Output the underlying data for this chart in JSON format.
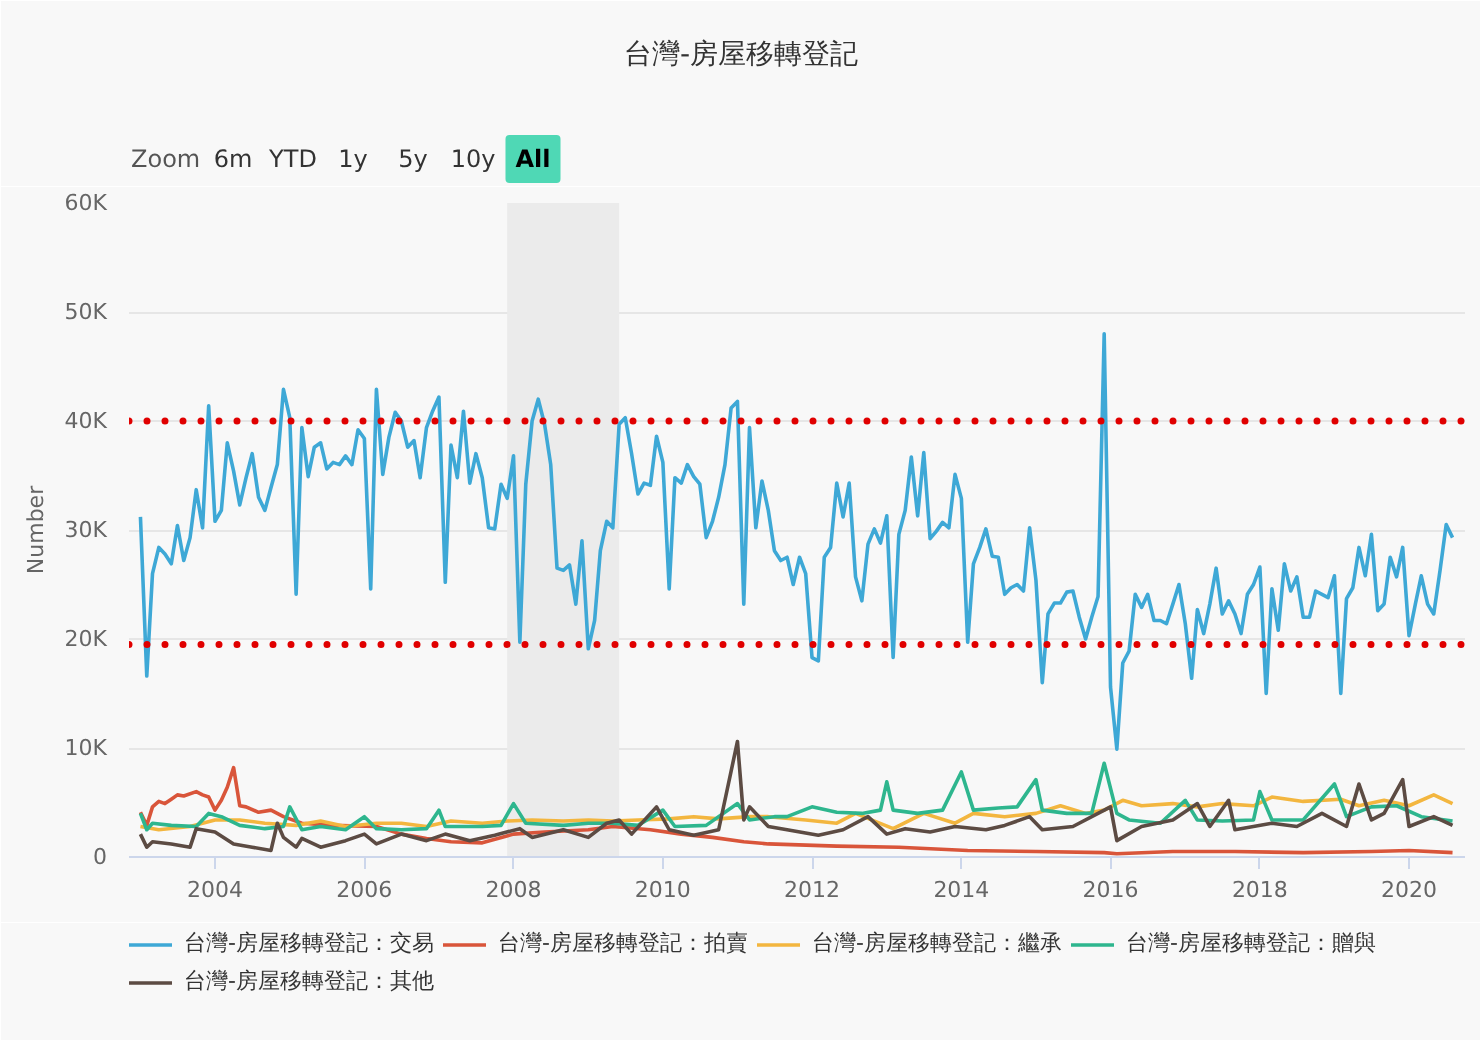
{
  "chart_data": {
    "type": "line",
    "title": "台灣-房屋移轉登記",
    "ylabel": "Number",
    "annotations": [
      "Zoom",
      "6m",
      "YTD",
      "1y",
      "5y",
      "10y",
      "All"
    ],
    "x": [
      "2003-01",
      "2003-02",
      "2003-03",
      "2003-04",
      "2003-05",
      "2003-06",
      "2003-07",
      "2003-08",
      "2003-09",
      "2003-10",
      "2003-11",
      "2003-12",
      "2004-01",
      "2004-02",
      "2004-03",
      "2004-04",
      "2004-05",
      "2004-06",
      "2004-07",
      "2004-08",
      "2004-09",
      "2004-10",
      "2004-11",
      "2004-12",
      "2005-01",
      "2005-02",
      "2005-03",
      "2005-04",
      "2005-05",
      "2005-06",
      "2005-07",
      "2005-08",
      "2005-09",
      "2005-10",
      "2005-11",
      "2005-12",
      "2006-01",
      "2006-02",
      "2006-03",
      "2006-04",
      "2006-05",
      "2006-06",
      "2006-07",
      "2006-08",
      "2006-09",
      "2006-10",
      "2006-11",
      "2006-12",
      "2007-01",
      "2007-02",
      "2007-03",
      "2007-04",
      "2007-05",
      "2007-06",
      "2007-07",
      "2007-08",
      "2007-09",
      "2007-10",
      "2007-11",
      "2007-12",
      "2008-01",
      "2008-02",
      "2008-03",
      "2008-04",
      "2008-05",
      "2008-06",
      "2008-07",
      "2008-08",
      "2008-09",
      "2008-10",
      "2008-11",
      "2008-12",
      "2009-01",
      "2009-02",
      "2009-03",
      "2009-04",
      "2009-05",
      "2009-06",
      "2009-07",
      "2009-08",
      "2009-09",
      "2009-10",
      "2009-11",
      "2009-12",
      "2010-01",
      "2010-02",
      "2010-03",
      "2010-04",
      "2010-05",
      "2010-06",
      "2010-07",
      "2010-08",
      "2010-09",
      "2010-10",
      "2010-11",
      "2010-12",
      "2011-01",
      "2011-02",
      "2011-03",
      "2011-04",
      "2011-05",
      "2011-06",
      "2011-07",
      "2011-08",
      "2011-09",
      "2011-10",
      "2011-11",
      "2011-12",
      "2012-01",
      "2012-02",
      "2012-03",
      "2012-04",
      "2012-05",
      "2012-06",
      "2012-07",
      "2012-08",
      "2012-09",
      "2012-10",
      "2012-11",
      "2012-12",
      "2013-01",
      "2013-02",
      "2013-03",
      "2013-04",
      "2013-05",
      "2013-06",
      "2013-07",
      "2013-08",
      "2013-09",
      "2013-10",
      "2013-11",
      "2013-12",
      "2014-01",
      "2014-02",
      "2014-03",
      "2014-04",
      "2014-05",
      "2014-06",
      "2014-07",
      "2014-08",
      "2014-09",
      "2014-10",
      "2014-11",
      "2014-12",
      "2015-01",
      "2015-02",
      "2015-03",
      "2015-04",
      "2015-05",
      "2015-06",
      "2015-07",
      "2015-08",
      "2015-09",
      "2015-10",
      "2015-11",
      "2015-12",
      "2016-01",
      "2016-02",
      "2016-03",
      "2016-04",
      "2016-05",
      "2016-06",
      "2016-07",
      "2016-08",
      "2016-09",
      "2016-10",
      "2016-11",
      "2016-12",
      "2017-01",
      "2017-02",
      "2017-03",
      "2017-04",
      "2017-05",
      "2017-06",
      "2017-07",
      "2017-08",
      "2017-09",
      "2017-10",
      "2017-11",
      "2017-12",
      "2018-01",
      "2018-02",
      "2018-03",
      "2018-04",
      "2018-05",
      "2018-06",
      "2018-07",
      "2018-08",
      "2018-09",
      "2018-10",
      "2018-11",
      "2018-12",
      "2019-01",
      "2019-02",
      "2019-03",
      "2019-04",
      "2019-05",
      "2019-06",
      "2019-07",
      "2019-08",
      "2019-09",
      "2019-10",
      "2019-11",
      "2019-12",
      "2020-01",
      "2020-02",
      "2020-03",
      "2020-04",
      "2020-05",
      "2020-06",
      "2020-07",
      "2020-08"
    ],
    "series": [
      {
        "name": "台灣-房屋移轉登記：交易",
        "color": "#3ea8d6",
        "values": [
          31200,
          16600,
          26000,
          28400,
          27800,
          26900,
          30400,
          27200,
          29300,
          33700,
          30200,
          41400,
          30800,
          31800,
          38000,
          35400,
          32300,
          34800,
          37000,
          33000,
          31800,
          33900,
          36000,
          42900,
          40300,
          24100,
          39400,
          34900,
          37600,
          38000,
          35600,
          36200,
          36000,
          36800,
          36000,
          39200,
          38400,
          24600,
          42900,
          35100,
          38500,
          40800,
          40000,
          37600,
          38200,
          34800,
          39400,
          40900,
          42200,
          25200,
          37800,
          34800,
          40900,
          34300,
          37000,
          34800,
          30200,
          30100,
          34200,
          32900,
          36800,
          19700,
          34200,
          40000,
          42000,
          39700,
          36000,
          26500,
          26300,
          26800,
          23200,
          29000,
          19100,
          21700,
          28100,
          30800,
          30200,
          39700,
          40300,
          37000,
          33300,
          34300,
          34100,
          38600,
          36200,
          24600,
          34800,
          34300,
          36000,
          34900,
          34200,
          29300,
          30800,
          33000,
          36000,
          41200,
          41800,
          23200,
          39400,
          30200,
          34500,
          31800,
          28100,
          27200,
          27500,
          25000,
          27500,
          26000,
          18300,
          18000,
          27500,
          28400,
          34300,
          31200,
          34300,
          25700,
          23500,
          28700,
          30100,
          28800,
          31300,
          18300,
          29600,
          31800,
          36700,
          31300,
          37100,
          29200,
          29900,
          30700,
          30200,
          35100,
          32900,
          19700,
          26900,
          28400,
          30100,
          27600,
          27500,
          24100,
          24700,
          25000,
          24400,
          30200,
          25400,
          16000,
          22300,
          23300,
          23300,
          24300,
          24400,
          22000,
          20000,
          22000,
          23900,
          48000,
          15600,
          9900,
          17800,
          18900,
          24100,
          22900,
          24100,
          21700,
          21700,
          21400,
          23200,
          25000,
          21400,
          16400,
          22700,
          20500,
          23200,
          26500,
          22300,
          23500,
          22300,
          20500,
          24100,
          25000,
          26600,
          15000,
          24600,
          20800,
          26900,
          24400,
          25700,
          22000,
          22000,
          24400,
          24100,
          23800,
          25800,
          15000,
          23700,
          24700,
          28400,
          25800,
          29600,
          22600,
          23200,
          27500,
          25700,
          28400,
          20300,
          23200,
          25800,
          23200,
          22300,
          26300,
          30500,
          29300
        ]
      },
      {
        "name": "台灣-房屋移轉登記：拍賣",
        "color": "#d9553a",
        "x": [
          "2003-01",
          "2003-02",
          "2003-03",
          "2003-04",
          "2003-05",
          "2003-06",
          "2003-07",
          "2003-08",
          "2003-10",
          "2003-11",
          "2003-12",
          "2004-01",
          "2004-02",
          "2004-03",
          "2004-04",
          "2004-05",
          "2004-06",
          "2004-08",
          "2004-10",
          "2004-12",
          "2005-03",
          "2005-08",
          "2006-03",
          "2006-07",
          "2006-11",
          "2007-03",
          "2007-08",
          "2008-01",
          "2008-06",
          "2009-01",
          "2009-05",
          "2009-11",
          "2010-04",
          "2010-09",
          "2011-02",
          "2011-06",
          "2012-05",
          "2013-03",
          "2014-02",
          "2015-01",
          "2015-12",
          "2016-02",
          "2016-11",
          "2017-09",
          "2018-08",
          "2019-07",
          "2020-01",
          "2020-08"
        ],
        "values": [
          4100,
          2900,
          4600,
          5100,
          4900,
          5300,
          5700,
          5600,
          6000,
          5700,
          5500,
          4300,
          5200,
          6400,
          8200,
          4700,
          4600,
          4100,
          4300,
          3700,
          3100,
          2900,
          2800,
          2100,
          1700,
          1400,
          1300,
          2100,
          2300,
          2500,
          2800,
          2500,
          2100,
          1800,
          1400,
          1200,
          1000,
          900,
          600,
          500,
          400,
          300,
          500,
          500,
          400,
          500,
          600,
          400
        ]
      },
      {
        "name": "台灣-房屋移轉登記：繼承",
        "color": "#f3b63f",
        "x": [
          "2003-01",
          "2003-04",
          "2003-09",
          "2004-01",
          "2004-05",
          "2004-09",
          "2005-02",
          "2005-06",
          "2005-10",
          "2006-03",
          "2006-07",
          "2006-11",
          "2007-03",
          "2007-08",
          "2007-12",
          "2008-04",
          "2008-09",
          "2009-01",
          "2009-05",
          "2009-09",
          "2010-02",
          "2010-06",
          "2010-10",
          "2011-03",
          "2011-06",
          "2011-12",
          "2012-05",
          "2012-08",
          "2013-02",
          "2013-07",
          "2013-12",
          "2014-03",
          "2014-08",
          "2015-01",
          "2015-05",
          "2015-09",
          "2015-12",
          "2016-03",
          "2016-06",
          "2016-11",
          "2017-03",
          "2017-07",
          "2017-12",
          "2018-03",
          "2018-08",
          "2019-02",
          "2019-05",
          "2019-09",
          "2020-01",
          "2020-05",
          "2020-08"
        ],
        "values": [
          2800,
          2500,
          2800,
          3400,
          3400,
          3100,
          2900,
          3300,
          2800,
          3100,
          3100,
          2800,
          3300,
          3100,
          3300,
          3400,
          3300,
          3400,
          3300,
          3400,
          3500,
          3700,
          3500,
          3700,
          3700,
          3400,
          3100,
          4000,
          2600,
          4000,
          3100,
          4000,
          3700,
          4000,
          4700,
          4000,
          4300,
          5200,
          4700,
          4900,
          4600,
          4900,
          4700,
          5500,
          5100,
          5300,
          4700,
          5200,
          4700,
          5700,
          4900
        ]
      },
      {
        "name": "台灣-房屋移轉登記：贈與",
        "color": "#2eb68e",
        "x": [
          "2003-01",
          "2003-02",
          "2003-03",
          "2003-06",
          "2003-10",
          "2003-12",
          "2004-02",
          "2004-05",
          "2004-09",
          "2004-12",
          "2005-01",
          "2005-03",
          "2005-06",
          "2005-10",
          "2006-01",
          "2006-03",
          "2006-07",
          "2006-11",
          "2007-01",
          "2007-02",
          "2007-08",
          "2007-11",
          "2008-01",
          "2008-03",
          "2008-09",
          "2009-01",
          "2009-05",
          "2009-09",
          "2010-01",
          "2010-03",
          "2010-08",
          "2011-01",
          "2011-03",
          "2011-07",
          "2011-09",
          "2012-01",
          "2012-05",
          "2012-09",
          "2012-12",
          "2013-01",
          "2013-02",
          "2013-06",
          "2013-10",
          "2014-01",
          "2014-03",
          "2014-07",
          "2014-10",
          "2015-01",
          "2015-02",
          "2015-06",
          "2015-10",
          "2015-12",
          "2016-02",
          "2016-04",
          "2016-09",
          "2017-01",
          "2017-03",
          "2017-07",
          "2017-12",
          "2018-01",
          "2018-03",
          "2018-08",
          "2019-01",
          "2019-03",
          "2019-07",
          "2019-11",
          "2020-03",
          "2020-08"
        ],
        "values": [
          4000,
          2500,
          3100,
          2900,
          2800,
          4000,
          3700,
          2900,
          2600,
          2800,
          4600,
          2500,
          2800,
          2500,
          3700,
          2600,
          2500,
          2600,
          4300,
          2800,
          2800,
          2900,
          4900,
          3100,
          2900,
          3100,
          3100,
          2900,
          4300,
          2800,
          2900,
          4900,
          3400,
          3700,
          3700,
          4600,
          4100,
          4000,
          4300,
          6900,
          4300,
          4000,
          4300,
          7800,
          4300,
          4500,
          4600,
          7100,
          4300,
          4000,
          4000,
          8600,
          4000,
          3400,
          3100,
          5200,
          3400,
          3300,
          3400,
          6000,
          3400,
          3400,
          6700,
          3700,
          4600,
          4700,
          3700,
          3300
        ]
      },
      {
        "name": "台灣-房屋移轉登記：其他",
        "color": "#5c4b43",
        "x": [
          "2003-01",
          "2003-02",
          "2003-03",
          "2003-06",
          "2003-09",
          "2003-10",
          "2004-01",
          "2004-04",
          "2004-07",
          "2004-10",
          "2004-11",
          "2004-12",
          "2005-02",
          "2005-03",
          "2005-06",
          "2005-10",
          "2006-01",
          "2006-03",
          "2006-07",
          "2006-11",
          "2007-02",
          "2007-06",
          "2007-10",
          "2008-02",
          "2008-04",
          "2008-09",
          "2009-01",
          "2009-04",
          "2009-06",
          "2009-08",
          "2009-12",
          "2010-02",
          "2010-06",
          "2010-10",
          "2011-01",
          "2011-02",
          "2011-03",
          "2011-06",
          "2011-09",
          "2012-02",
          "2012-06",
          "2012-10",
          "2013-01",
          "2013-04",
          "2013-08",
          "2013-12",
          "2014-05",
          "2014-08",
          "2014-12",
          "2015-02",
          "2015-07",
          "2015-11",
          "2016-01",
          "2016-02",
          "2016-06",
          "2016-11",
          "2017-03",
          "2017-05",
          "2017-08",
          "2017-09",
          "2018-03",
          "2018-07",
          "2018-11",
          "2019-03",
          "2019-05",
          "2019-07",
          "2019-09",
          "2019-12",
          "2020-01",
          "2020-05",
          "2020-08"
        ],
        "values": [
          2100,
          900,
          1400,
          1200,
          900,
          2600,
          2300,
          1200,
          900,
          600,
          3100,
          1800,
          900,
          1700,
          900,
          1500,
          2100,
          1200,
          2100,
          1500,
          2100,
          1500,
          2000,
          2600,
          1800,
          2500,
          1800,
          3100,
          3400,
          2100,
          4600,
          2500,
          2000,
          2500,
          10600,
          3400,
          4600,
          2800,
          2500,
          2000,
          2500,
          3700,
          2100,
          2600,
          2300,
          2800,
          2500,
          2900,
          3700,
          2500,
          2800,
          4000,
          4600,
          1500,
          2800,
          3400,
          4900,
          2800,
          5200,
          2500,
          3100,
          2800,
          4000,
          2800,
          6700,
          3400,
          4000,
          7100,
          2800,
          3700,
          2900
        ]
      }
    ],
    "xlim": [
      "2002-11-06",
      "2020-10-01"
    ],
    "xticks": [
      "2004",
      "2006",
      "2008",
      "2010",
      "2012",
      "2014",
      "2016",
      "2018",
      "2020"
    ],
    "ylim": [
      0,
      60000
    ],
    "yticks": [
      0,
      {
        "value": 10000,
        "label": "10K"
      },
      {
        "value": 20000,
        "label": "20K"
      },
      {
        "value": 30000,
        "label": "30K"
      },
      {
        "value": 40000,
        "label": "40K"
      },
      {
        "value": 50000,
        "label": "50K"
      },
      {
        "value": 60000,
        "label": "60K"
      }
    ],
    "ref_lines": [
      {
        "axis": "y",
        "value": 40000,
        "color": "#e00000",
        "line_style": "dotted"
      },
      {
        "axis": "y",
        "value": 19500,
        "color": "#e00000",
        "line_style": "dotted"
      }
    ],
    "bands": [
      {
        "axis": "x",
        "from": "2007-12",
        "to": "2009-06",
        "color": "#ebebeb"
      }
    ],
    "grid": "y",
    "legend": "bottom"
  }
}
